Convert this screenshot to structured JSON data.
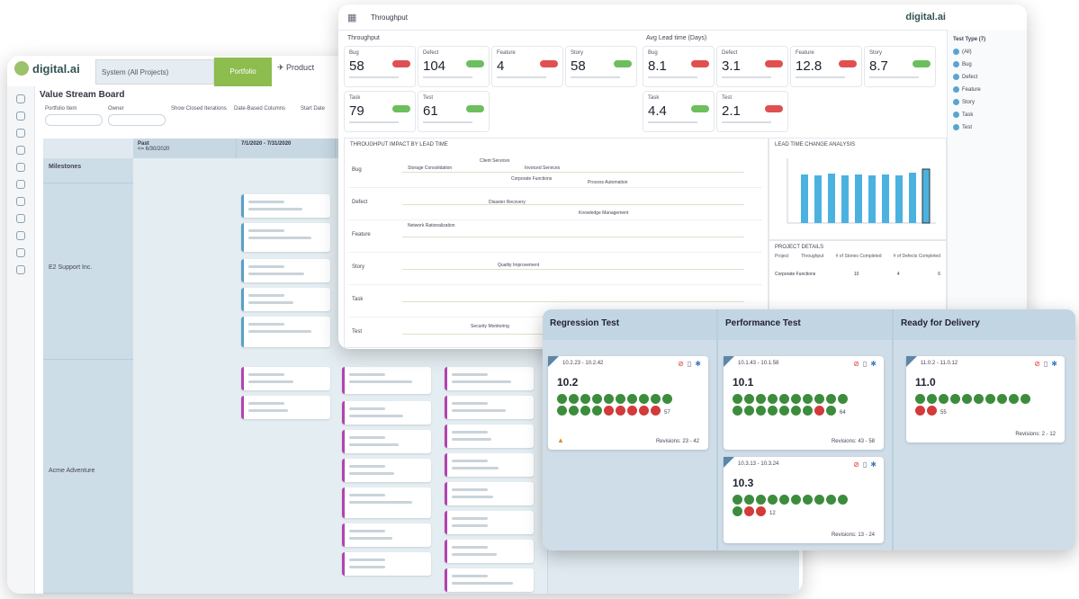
{
  "vsb": {
    "logo": "digital.ai",
    "system_tab": "System (All Projects)",
    "portfolio_tab": "Portfolio",
    "product_tab": "Product",
    "title": "Value Stream Board",
    "filters": [
      "Portfolio Item",
      "Owner",
      "Show Closed Iterations",
      "Date-Based Columns",
      "Start Date"
    ],
    "columns": [
      "Past",
      "7/1/2020 - 7/31/2020"
    ],
    "past_sub": "<= 6/30/2020",
    "rows": [
      "Milestones",
      "E2 Support Inc.",
      "Acme Adventure"
    ]
  },
  "throughput": {
    "title": "Throughput",
    "brand": "digital.ai",
    "section_left": "Throughput",
    "section_right": "Avg Lead time (Days)",
    "tiles_left": [
      {
        "label": "Bug",
        "value": "58",
        "badge": "red"
      },
      {
        "label": "Defect",
        "value": "104",
        "badge": "green"
      },
      {
        "label": "Feature",
        "value": "4",
        "badge": "red"
      },
      {
        "label": "Story",
        "value": "58",
        "badge": "green"
      },
      {
        "label": "Task",
        "value": "79",
        "badge": "green"
      },
      {
        "label": "Test",
        "value": "61",
        "badge": "green"
      }
    ],
    "tiles_right": [
      {
        "label": "Bug",
        "value": "8.1",
        "badge": "red"
      },
      {
        "label": "Defect",
        "value": "3.1",
        "badge": "red"
      },
      {
        "label": "Feature",
        "value": "12.8",
        "badge": "red"
      },
      {
        "label": "Story",
        "value": "8.7",
        "badge": "green"
      },
      {
        "label": "Task",
        "value": "4.4",
        "badge": "green"
      },
      {
        "label": "Test",
        "value": "2.1",
        "badge": "red"
      }
    ],
    "impact_title": "THROUGHPUT IMPACT BY LEAD TIME",
    "impact_rows": [
      "Bug",
      "Defect",
      "Feature",
      "Story",
      "Task",
      "Test"
    ],
    "impact_labels": [
      "Storage Consolidation",
      "Client Services",
      "Invoiced Services",
      "Corporate Functions",
      "Process Automation",
      "Disaster Recovery",
      "Knowledge Management",
      "Network Rationalization",
      "Quality Improvement",
      "Security Monitoring"
    ],
    "lead_title": "LEAD TIME CHANGE ANALYSIS",
    "project_details": "PROJECT DETAILS",
    "pd_cols": [
      "Project",
      "Throughput",
      "# of Stories Completed",
      "# of Defects Completed"
    ],
    "pd_row": [
      "Corporate Functions",
      "10",
      "4",
      "6"
    ],
    "right_panel": {
      "header": "Test Type (7)",
      "items": [
        "(All)",
        "Bug",
        "Defect",
        "Feature",
        "Story",
        "Task",
        "Test"
      ]
    }
  },
  "release": {
    "columns": [
      {
        "title": "Regression Test"
      },
      {
        "title": "Performance Test"
      },
      {
        "title": "Ready for Delivery"
      }
    ],
    "cards": [
      {
        "range": "10.2.23 - 10.2.42",
        "version": "10.2",
        "count": "57",
        "revisions": "Revisions: 23 - 42"
      },
      {
        "range": "10.1.43 - 10.1.58",
        "version": "10.1",
        "count": "64",
        "revisions": "Revisions: 43 - 58"
      },
      {
        "range": "10.3.13 - 10.3.24",
        "version": "10.3",
        "count": "12",
        "revisions": "Revisions: 13 - 24"
      },
      {
        "range": "11.0.2 - 11.0.12",
        "version": "11.0",
        "count": "55",
        "revisions": "Revisions: 2 - 12"
      }
    ]
  }
}
